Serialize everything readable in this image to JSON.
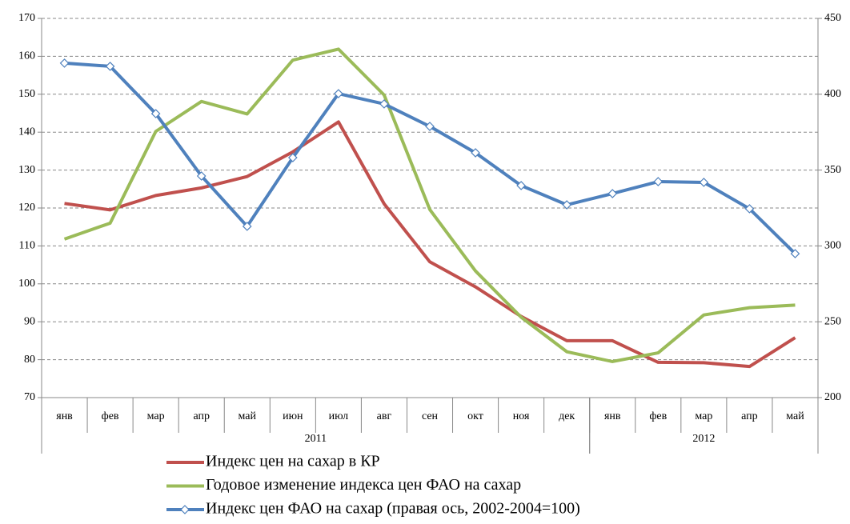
{
  "chart_data": {
    "type": "line",
    "categories": [
      "янв",
      "фев",
      "мар",
      "апр",
      "май",
      "июн",
      "июл",
      "авг",
      "сен",
      "окт",
      "ноя",
      "дек",
      "янв",
      "фев",
      "мар",
      "апр",
      "май"
    ],
    "groups": [
      {
        "label": "2011",
        "span": 12
      },
      {
        "label": "2012",
        "span": 5
      }
    ],
    "series": [
      {
        "name": "Индекс цен на сахар в КР",
        "color": "#c0504d",
        "marker": false,
        "values": [
          121.2,
          119.5,
          123.3,
          125.3,
          128.3,
          134.8,
          142.7,
          121.1,
          105.8,
          99.2,
          91.4,
          85.0,
          85.0,
          79.3,
          79.2,
          78.2,
          85.8
        ]
      },
      {
        "name": "Годовое изменение индекса цен ФАО на сахар",
        "color": "#9bbb59",
        "marker": false,
        "values": [
          111.8,
          116.0,
          140.2,
          148.1,
          144.8,
          159.0,
          161.9,
          149.8,
          119.6,
          103.4,
          91.2,
          82.1,
          79.5,
          81.8,
          91.8,
          93.7,
          94.4
        ]
      },
      {
        "name": "Индекс цен ФАО на сахар (правая ось, 2002-2004=100)",
        "color": "#4f81bd",
        "marker": true,
        "axis": "y2",
        "values": [
          420.5,
          418.4,
          387.2,
          346.1,
          312.9,
          358.2,
          400.4,
          393.6,
          378.8,
          361.4,
          339.8,
          327.1,
          334.5,
          342.4,
          341.9,
          324.5,
          294.9
        ]
      }
    ],
    "ylim": [
      70,
      170
    ],
    "yticks": [
      70,
      80,
      90,
      100,
      110,
      120,
      130,
      140,
      150,
      160,
      170
    ],
    "y2lim": [
      200,
      450
    ],
    "y2ticks": [
      200,
      250,
      300,
      350,
      400,
      450
    ],
    "grid": true,
    "legend": "bottom"
  }
}
